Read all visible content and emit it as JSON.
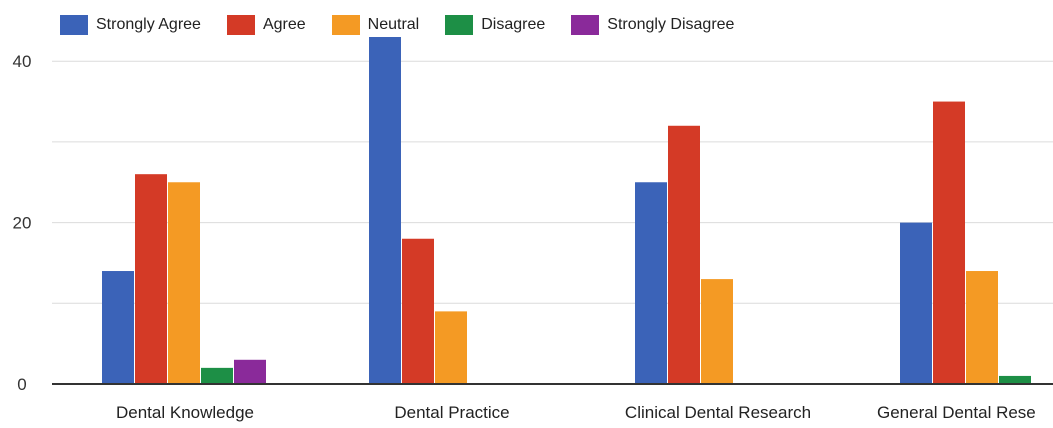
{
  "chart_data": {
    "type": "bar",
    "title": "",
    "xlabel": "",
    "ylabel": "",
    "ylim": [
      0,
      43
    ],
    "yticks": [
      "0",
      "20",
      "40"
    ],
    "grid": true,
    "legend_position": "top",
    "categories": [
      "Dental Knowledge",
      "Dental Practice",
      "Clinical Dental Research",
      "General Dental Rese"
    ],
    "series": [
      {
        "name": "Strongly Agree",
        "color": "#3b63b8",
        "values": [
          14,
          43,
          25,
          20
        ]
      },
      {
        "name": "Agree",
        "color": "#d43a26",
        "values": [
          26,
          18,
          32,
          35
        ]
      },
      {
        "name": "Neutral",
        "color": "#f49a24",
        "values": [
          25,
          9,
          13,
          14
        ]
      },
      {
        "name": "Disagree",
        "color": "#1d8f46",
        "values": [
          2,
          0,
          0,
          1
        ]
      },
      {
        "name": "Strongly Disagree",
        "color": "#8a2a9a",
        "values": [
          3,
          0,
          0,
          0
        ]
      }
    ]
  }
}
